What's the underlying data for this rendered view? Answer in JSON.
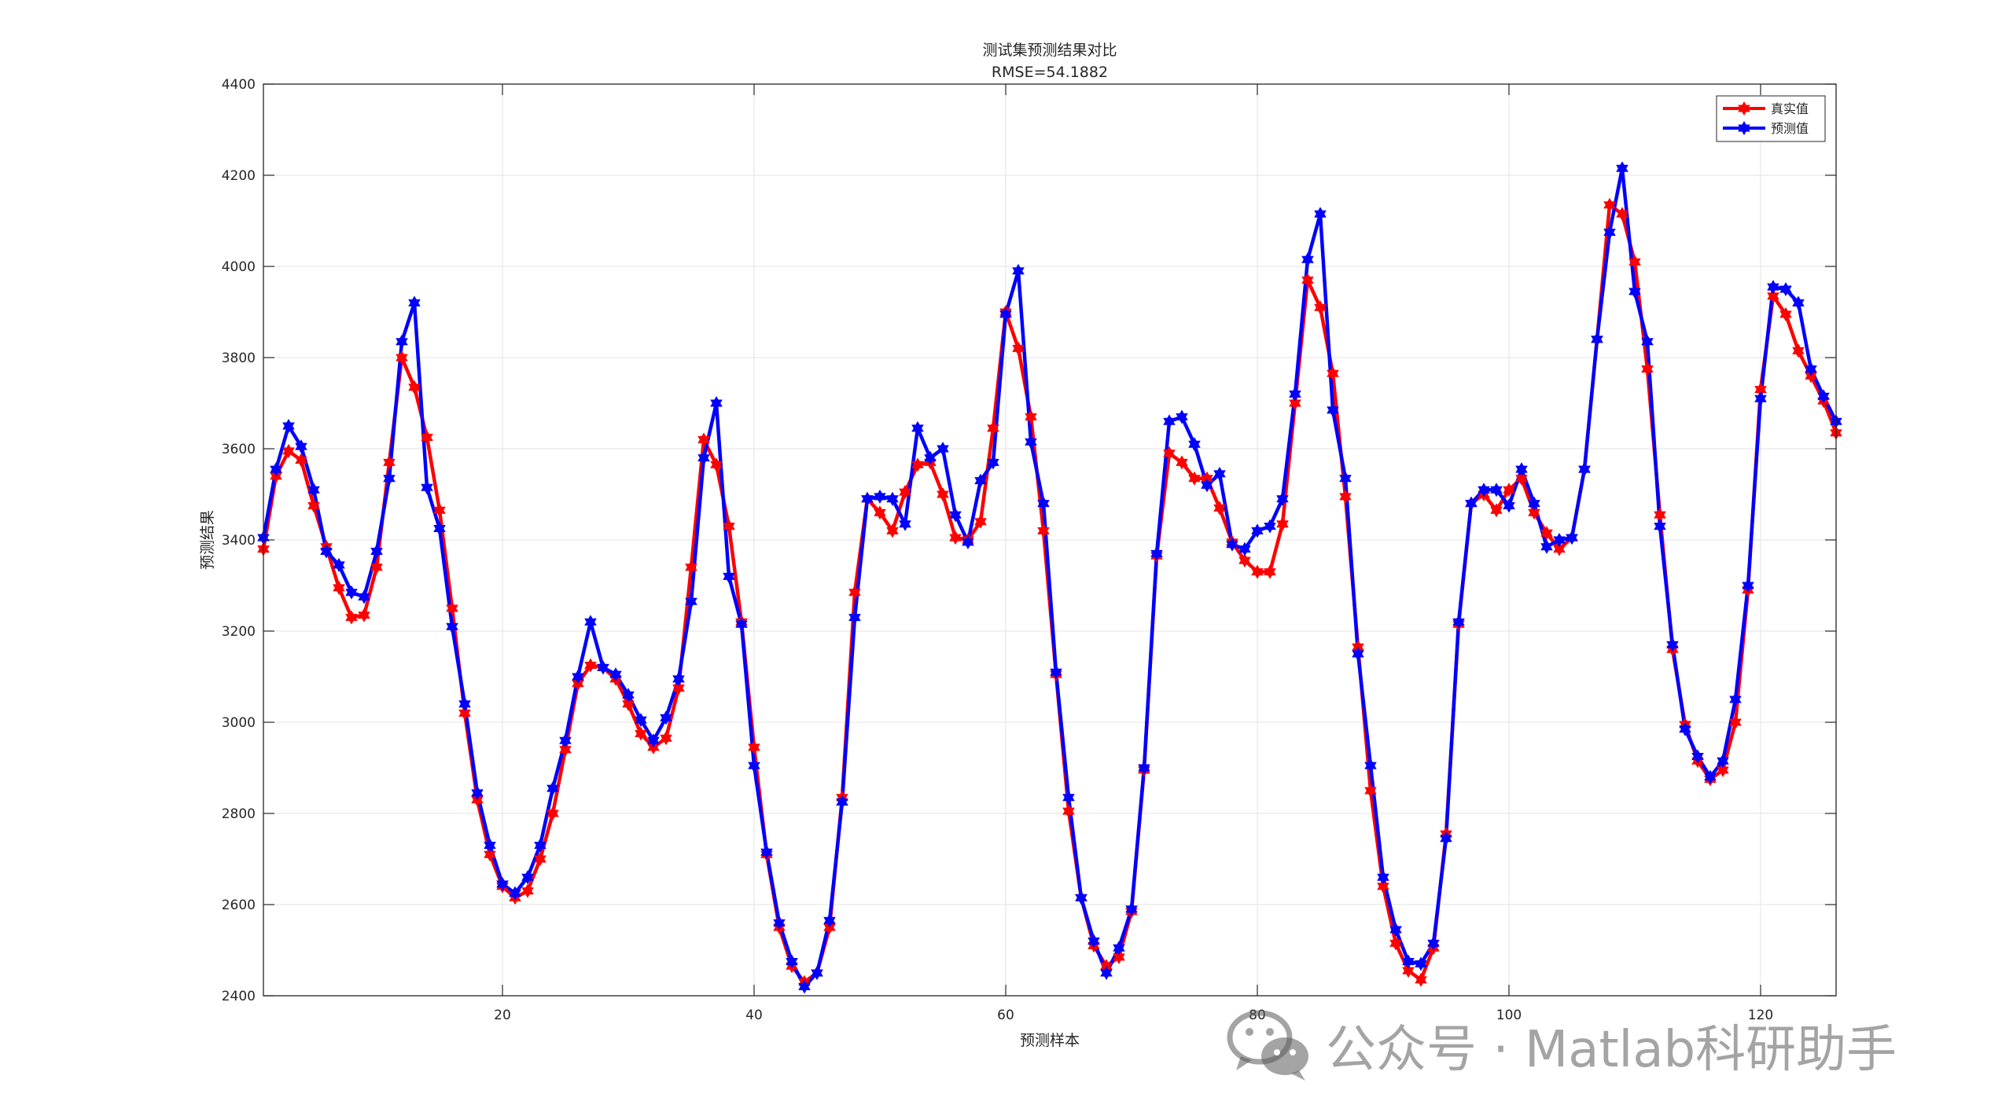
{
  "chart_data": {
    "type": "line",
    "title": "测试集预测结果对比",
    "subtitle": "RMSE=54.1882",
    "xlabel": "预测样本",
    "ylabel": "预测结果",
    "xlim": [
      1,
      126
    ],
    "ylim": [
      2400,
      4400
    ],
    "xticks": [
      20,
      40,
      60,
      80,
      100,
      120
    ],
    "yticks": [
      2400,
      2600,
      2800,
      3000,
      3200,
      3400,
      3600,
      3800,
      4000,
      4200,
      4400
    ],
    "grid": true,
    "legend_position": "top-right",
    "x": [
      1,
      2,
      3,
      4,
      5,
      6,
      7,
      8,
      9,
      10,
      11,
      12,
      13,
      14,
      15,
      16,
      17,
      18,
      19,
      20,
      21,
      22,
      23,
      24,
      25,
      26,
      27,
      28,
      29,
      30,
      31,
      32,
      33,
      34,
      35,
      36,
      37,
      38,
      39,
      40,
      41,
      42,
      43,
      44,
      45,
      46,
      47,
      48,
      49,
      50,
      51,
      52,
      53,
      54,
      55,
      56,
      57,
      58,
      59,
      60,
      61,
      62,
      63,
      64,
      65,
      66,
      67,
      68,
      69,
      70,
      71,
      72,
      73,
      74,
      75,
      76,
      77,
      78,
      79,
      80,
      81,
      82,
      83,
      84,
      85,
      86,
      87,
      88,
      89,
      90,
      91,
      92,
      93,
      94,
      95,
      96,
      97,
      98,
      99,
      100,
      101,
      102,
      103,
      104,
      105,
      106,
      107,
      108,
      109,
      110,
      111,
      112,
      113,
      114,
      115,
      116,
      117,
      118,
      119,
      120,
      121,
      122,
      123,
      124,
      125,
      126
    ],
    "series": [
      {
        "name": "真实值",
        "color": "#ff0000",
        "values": [
          3380,
          3540,
          3595,
          3575,
          3475,
          3385,
          3295,
          3230,
          3235,
          3340,
          3570,
          3800,
          3735,
          3625,
          3465,
          3250,
          3020,
          2830,
          2710,
          2640,
          2615,
          2630,
          2700,
          2800,
          2940,
          3085,
          3125,
          3120,
          3095,
          3040,
          2975,
          2945,
          2965,
          3075,
          3340,
          3620,
          3565,
          3430,
          3220,
          2945,
          2710,
          2550,
          2465,
          2430,
          2450,
          2550,
          2835,
          3285,
          3490,
          3460,
          3420,
          3505,
          3565,
          3570,
          3500,
          3405,
          3400,
          3440,
          3645,
          3900,
          3820,
          3670,
          3420,
          3105,
          2805,
          2615,
          2510,
          2465,
          2485,
          2585,
          2895,
          3365,
          3590,
          3570,
          3535,
          3535,
          3470,
          3395,
          3355,
          3330,
          3330,
          3435,
          3700,
          3970,
          3910,
          3765,
          3495,
          3165,
          2850,
          2640,
          2515,
          2455,
          2435,
          2505,
          2755,
          3215,
          3480,
          3500,
          3465,
          3510,
          3535,
          3460,
          3415,
          3380,
          3405,
          3555,
          3840,
          4135,
          4115,
          4010,
          3775,
          3455,
          3160,
          2995,
          2915,
          2875,
          2895,
          3000,
          3290,
          3730,
          3935,
          3895,
          3815,
          3760,
          3705,
          3635
        ]
      },
      {
        "name": "预测值",
        "color": "#0000ff",
        "values": [
          3405,
          3555,
          3650,
          3605,
          3510,
          3375,
          3345,
          3285,
          3275,
          3375,
          3535,
          3835,
          3920,
          3515,
          3425,
          3210,
          3040,
          2845,
          2730,
          2645,
          2625,
          2660,
          2730,
          2855,
          2960,
          3100,
          3220,
          3120,
          3105,
          3060,
          3005,
          2960,
          3010,
          3095,
          3265,
          3580,
          3700,
          3320,
          3215,
          2905,
          2715,
          2560,
          2475,
          2420,
          2450,
          2565,
          2825,
          3230,
          3490,
          3495,
          3490,
          3435,
          3645,
          3580,
          3600,
          3455,
          3395,
          3530,
          3570,
          3895,
          3990,
          3615,
          3480,
          3110,
          2835,
          2615,
          2520,
          2450,
          2505,
          2590,
          2900,
          3370,
          3660,
          3670,
          3610,
          3520,
          3545,
          3390,
          3380,
          3420,
          3430,
          3490,
          3720,
          4015,
          4115,
          3685,
          3535,
          3150,
          2905,
          2660,
          2545,
          2475,
          2470,
          2515,
          2745,
          3220,
          3480,
          3510,
          3510,
          3475,
          3555,
          3480,
          3385,
          3400,
          3405,
          3555,
          3840,
          4075,
          4215,
          3945,
          3835,
          3430,
          3170,
          2985,
          2925,
          2880,
          2915,
          3050,
          3300,
          3710,
          3955,
          3950,
          3920,
          3775,
          3715,
          3660
        ]
      }
    ]
  },
  "watermark": {
    "text": "公众号 · Matlab科研助手",
    "icon": "wechat-icon"
  }
}
